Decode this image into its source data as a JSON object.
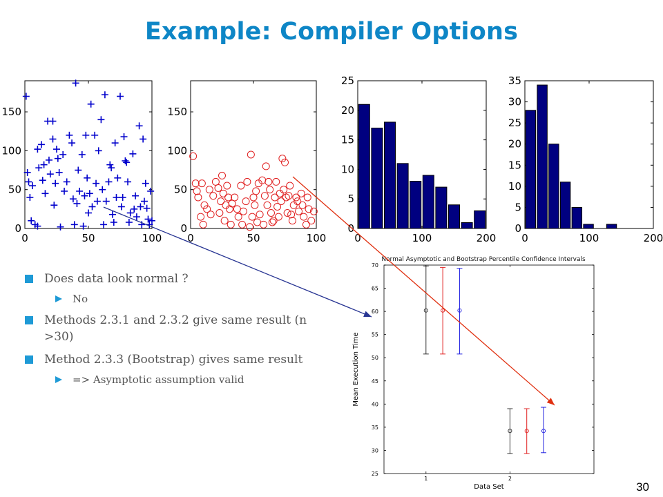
{
  "slide": {
    "title": "Example: Compiler Options",
    "page_number": "30",
    "bullets": [
      {
        "text": "Does data look normal ?",
        "sub": [
          "No"
        ]
      },
      {
        "text": "Methods 2.3.1 and 2.3.2 give same result (n >30)",
        "sub": []
      },
      {
        "text": "Method 2.3.3 (Bootstrap) gives same result",
        "sub": [
          "=> Asymptotic assumption valid"
        ]
      }
    ],
    "colors": {
      "title": "#0e86c6",
      "bullet": "#1e9ad6",
      "scatter1": "#0000cc",
      "scatter2": "#e02020",
      "hist": "#000080",
      "arrow1": "#283593",
      "arrow2": "#e03010"
    }
  },
  "chart_data": [
    {
      "type": "scatter",
      "marker": "plus",
      "color": "#0000cc",
      "xlim": [
        0,
        100
      ],
      "ylim": [
        0,
        190
      ],
      "xticks": [
        0,
        50,
        100
      ],
      "yticks": [
        0,
        50,
        100,
        150
      ],
      "points": [
        [
          1,
          170
        ],
        [
          2,
          72
        ],
        [
          3,
          60
        ],
        [
          4,
          40
        ],
        [
          5,
          10
        ],
        [
          6,
          55
        ],
        [
          8,
          5
        ],
        [
          10,
          3
        ],
        [
          10,
          102
        ],
        [
          11,
          78
        ],
        [
          13,
          108
        ],
        [
          14,
          62
        ],
        [
          15,
          82
        ],
        [
          16,
          45
        ],
        [
          18,
          138
        ],
        [
          19,
          88
        ],
        [
          20,
          70
        ],
        [
          22,
          138
        ],
        [
          22,
          115
        ],
        [
          23,
          30
        ],
        [
          24,
          58
        ],
        [
          25,
          102
        ],
        [
          26,
          90
        ],
        [
          27,
          72
        ],
        [
          28,
          2
        ],
        [
          30,
          95
        ],
        [
          31,
          48
        ],
        [
          33,
          60
        ],
        [
          35,
          120
        ],
        [
          37,
          110
        ],
        [
          38,
          38
        ],
        [
          39,
          5
        ],
        [
          40,
          187
        ],
        [
          41,
          32
        ],
        [
          42,
          75
        ],
        [
          43,
          48
        ],
        [
          45,
          95
        ],
        [
          46,
          3
        ],
        [
          47,
          42
        ],
        [
          48,
          120
        ],
        [
          49,
          65
        ],
        [
          50,
          20
        ],
        [
          51,
          45
        ],
        [
          52,
          160
        ],
        [
          53,
          28
        ],
        [
          55,
          120
        ],
        [
          56,
          58
        ],
        [
          57,
          35
        ],
        [
          58,
          100
        ],
        [
          60,
          140
        ],
        [
          61,
          50
        ],
        [
          62,
          5
        ],
        [
          63,
          172
        ],
        [
          64,
          35
        ],
        [
          66,
          60
        ],
        [
          67,
          82
        ],
        [
          68,
          78
        ],
        [
          69,
          18
        ],
        [
          70,
          8
        ],
        [
          71,
          110
        ],
        [
          72,
          40
        ],
        [
          73,
          65
        ],
        [
          75,
          170
        ],
        [
          76,
          28
        ],
        [
          77,
          40
        ],
        [
          78,
          118
        ],
        [
          79,
          87
        ],
        [
          80,
          85
        ],
        [
          81,
          60
        ],
        [
          82,
          8
        ],
        [
          83,
          20
        ],
        [
          85,
          96
        ],
        [
          86,
          25
        ],
        [
          87,
          42
        ],
        [
          88,
          15
        ],
        [
          90,
          132
        ],
        [
          91,
          28
        ],
        [
          92,
          5
        ],
        [
          93,
          115
        ],
        [
          94,
          35
        ],
        [
          95,
          58
        ],
        [
          96,
          26
        ],
        [
          97,
          12
        ],
        [
          98,
          5
        ],
        [
          99,
          48
        ],
        [
          100,
          10
        ]
      ]
    },
    {
      "type": "scatter",
      "marker": "circle",
      "color": "#e02020",
      "xlim": [
        0,
        100
      ],
      "ylim": [
        0,
        190
      ],
      "xticks": [
        0,
        50,
        100
      ],
      "yticks": [
        0,
        50,
        100,
        150
      ],
      "points": [
        [
          2,
          93
        ],
        [
          4,
          58
        ],
        [
          5,
          48
        ],
        [
          6,
          40
        ],
        [
          8,
          15
        ],
        [
          9,
          58
        ],
        [
          10,
          5
        ],
        [
          11,
          30
        ],
        [
          13,
          25
        ],
        [
          15,
          50
        ],
        [
          16,
          18
        ],
        [
          18,
          42
        ],
        [
          20,
          60
        ],
        [
          22,
          52
        ],
        [
          23,
          20
        ],
        [
          24,
          35
        ],
        [
          25,
          68
        ],
        [
          26,
          45
        ],
        [
          27,
          10
        ],
        [
          28,
          30
        ],
        [
          29,
          55
        ],
        [
          30,
          40
        ],
        [
          31,
          25
        ],
        [
          32,
          5
        ],
        [
          33,
          32
        ],
        [
          35,
          40
        ],
        [
          37,
          25
        ],
        [
          38,
          15
        ],
        [
          40,
          55
        ],
        [
          41,
          5
        ],
        [
          42,
          22
        ],
        [
          44,
          35
        ],
        [
          45,
          60
        ],
        [
          47,
          2
        ],
        [
          48,
          95
        ],
        [
          49,
          15
        ],
        [
          50,
          40
        ],
        [
          51,
          30
        ],
        [
          52,
          48
        ],
        [
          53,
          8
        ],
        [
          54,
          58
        ],
        [
          55,
          18
        ],
        [
          57,
          62
        ],
        [
          58,
          5
        ],
        [
          59,
          42
        ],
        [
          60,
          80
        ],
        [
          61,
          30
        ],
        [
          62,
          60
        ],
        [
          63,
          50
        ],
        [
          64,
          20
        ],
        [
          65,
          8
        ],
        [
          66,
          10
        ],
        [
          67,
          40
        ],
        [
          68,
          60
        ],
        [
          69,
          28
        ],
        [
          70,
          15
        ],
        [
          71,
          45
        ],
        [
          72,
          35
        ],
        [
          73,
          90
        ],
        [
          74,
          50
        ],
        [
          75,
          85
        ],
        [
          76,
          40
        ],
        [
          77,
          20
        ],
        [
          78,
          42
        ],
        [
          79,
          55
        ],
        [
          80,
          18
        ],
        [
          81,
          10
        ],
        [
          82,
          30
        ],
        [
          84,
          40
        ],
        [
          85,
          35
        ],
        [
          86,
          22
        ],
        [
          88,
          45
        ],
        [
          89,
          30
        ],
        [
          90,
          15
        ],
        [
          92,
          5
        ],
        [
          93,
          40
        ],
        [
          94,
          25
        ],
        [
          96,
          10
        ],
        [
          98,
          22
        ]
      ]
    },
    {
      "type": "bar",
      "color": "#000080",
      "xlim": [
        0,
        200
      ],
      "ylim": [
        0,
        25
      ],
      "xticks": [
        0,
        100,
        200
      ],
      "yticks": [
        0,
        5,
        10,
        15,
        20,
        25
      ],
      "bin_centers": [
        10,
        30,
        50,
        70,
        90,
        110,
        130,
        150,
        170,
        190
      ],
      "values": [
        21,
        17,
        18,
        11,
        8,
        9,
        7,
        4,
        1,
        3
      ]
    },
    {
      "type": "bar",
      "color": "#000080",
      "xlim": [
        0,
        200
      ],
      "ylim": [
        0,
        35
      ],
      "xticks": [
        0,
        100,
        200
      ],
      "yticks": [
        0,
        5,
        10,
        15,
        20,
        25,
        30,
        35
      ],
      "bin_centers": [
        9,
        27,
        45,
        63,
        81,
        99,
        117,
        135,
        153,
        171
      ],
      "values": [
        28,
        34,
        20,
        11,
        5,
        1,
        0,
        1,
        0,
        0
      ]
    },
    {
      "type": "errorbar",
      "title": "Normal Asymptotic and Bootstrap Percentile Confidence Intervals",
      "xlabel": "Data Set",
      "ylabel": "Mean Execution Time",
      "xlim": [
        0.5,
        3.0
      ],
      "ylim": [
        25,
        70
      ],
      "xticks": [
        1,
        2
      ],
      "yticks": [
        25,
        30,
        35,
        40,
        45,
        50,
        55,
        60,
        65,
        70
      ],
      "series": [
        {
          "color": "#333333",
          "points": [
            {
              "x": 1.0,
              "mean": 60.2,
              "low": 50.8,
              "high": 69.8
            },
            {
              "x": 2.0,
              "mean": 34.2,
              "low": 29.3,
              "high": 39.0
            }
          ]
        },
        {
          "color": "#e02020",
          "points": [
            {
              "x": 1.2,
              "mean": 60.2,
              "low": 50.8,
              "high": 69.5
            },
            {
              "x": 2.2,
              "mean": 34.2,
              "low": 29.3,
              "high": 39.0
            }
          ]
        },
        {
          "color": "#2020e0",
          "points": [
            {
              "x": 1.4,
              "mean": 60.2,
              "low": 50.8,
              "high": 69.3
            },
            {
              "x": 2.4,
              "mean": 34.2,
              "low": 29.5,
              "high": 39.3
            }
          ]
        }
      ]
    }
  ]
}
